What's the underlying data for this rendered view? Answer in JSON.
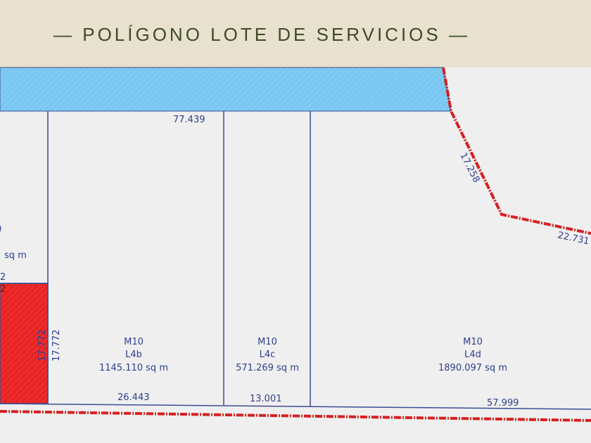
{
  "header": {
    "title": "— POLÍGONO LOTE DE SERVICIOS —"
  },
  "colors": {
    "header_bg": "#e8e1cf",
    "title": "#3e4a24",
    "map_bg": "#efefef",
    "blue_zone": "#7fcbf3",
    "red_lot": "#ee2a2a",
    "boundary": "#d42020",
    "lot_line": "#3c4c93",
    "label": "#2d3f8c"
  },
  "dimensions": {
    "top": "77.439",
    "diag_upper": "17.258",
    "diag_lower": "22.731",
    "left_vertical": "17.772",
    "red_vertical": "17.772",
    "bottom_l4b": "26.443",
    "bottom_l4c": "13.001",
    "bottom_l4d": "57.999",
    "partial_top": "2",
    "partial_bottom": "2"
  },
  "partial_lot": {
    "line1": "0",
    "line2": "sq m"
  },
  "lots": [
    {
      "manzana": "M10",
      "lote": "L4b",
      "area": "1145.110 sq m"
    },
    {
      "manzana": "M10",
      "lote": "L4c",
      "area": "571.269 sq m"
    },
    {
      "manzana": "M10",
      "lote": "L4d",
      "area": "1890.097 sq m"
    }
  ]
}
